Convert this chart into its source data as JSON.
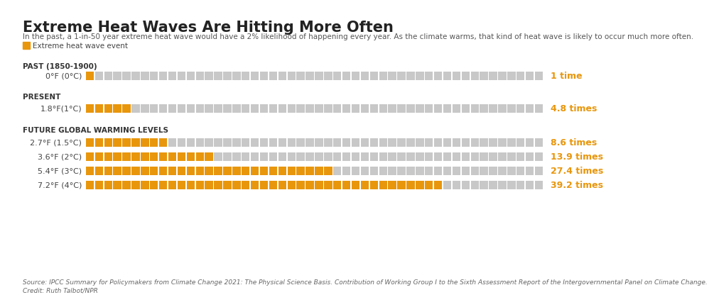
{
  "title": "Extreme Heat Waves Are Hitting More Often",
  "subtitle": "In the past, a 1-in-50 year extreme heat wave would have a 2% likelihood of happening every year. As the climate warms, that kind of heat wave is likely to occur much more often.",
  "legend_label": "Extreme heat wave event",
  "source": "Source: IPCC Summary for Policymakers from Climate Change 2021: The Physical Science Basis. Contribution of Working Group I to the Sixth Assessment Report of the Intergovernmental Panel on Climate Change.",
  "credit": "Credit: Ruth Talbot/NPR",
  "rows": [
    {
      "label": "0°F (0°C)",
      "section": "PAST (1850-1900)",
      "times": 1.0,
      "times_label": "1 time",
      "orange_count": 1
    },
    {
      "label": "1.8°F(1°C)",
      "section": "PRESENT",
      "times": 4.8,
      "times_label": "4.8 times",
      "orange_count": 5
    },
    {
      "label": "2.7°F (1.5°C)",
      "section": "FUTURE GLOBAL WARMING LEVELS",
      "times": 8.6,
      "times_label": "8.6 times",
      "orange_count": 9
    },
    {
      "label": "3.6°F (2°C)",
      "section": "FUTURE GLOBAL WARMING LEVELS",
      "times": 13.9,
      "times_label": "13.9 times",
      "orange_count": 14
    },
    {
      "label": "5.4°F (3°C)",
      "section": "FUTURE GLOBAL WARMING LEVELS",
      "times": 27.4,
      "times_label": "27.4 times",
      "orange_count": 27
    },
    {
      "label": "7.2°F (4°C)",
      "section": "FUTURE GLOBAL WARMING LEVELS",
      "times": 39.2,
      "times_label": "39.2 times",
      "orange_count": 39
    }
  ],
  "total_squares": 50,
  "orange_color": "#E8960C",
  "gray_color": "#C8C8C8",
  "background_color": "#FFFFFF",
  "title_fontsize": 15,
  "subtitle_fontsize": 7.5,
  "label_fontsize": 8,
  "section_fontsize": 7.5,
  "times_fontsize": 9,
  "source_fontsize": 6.5
}
